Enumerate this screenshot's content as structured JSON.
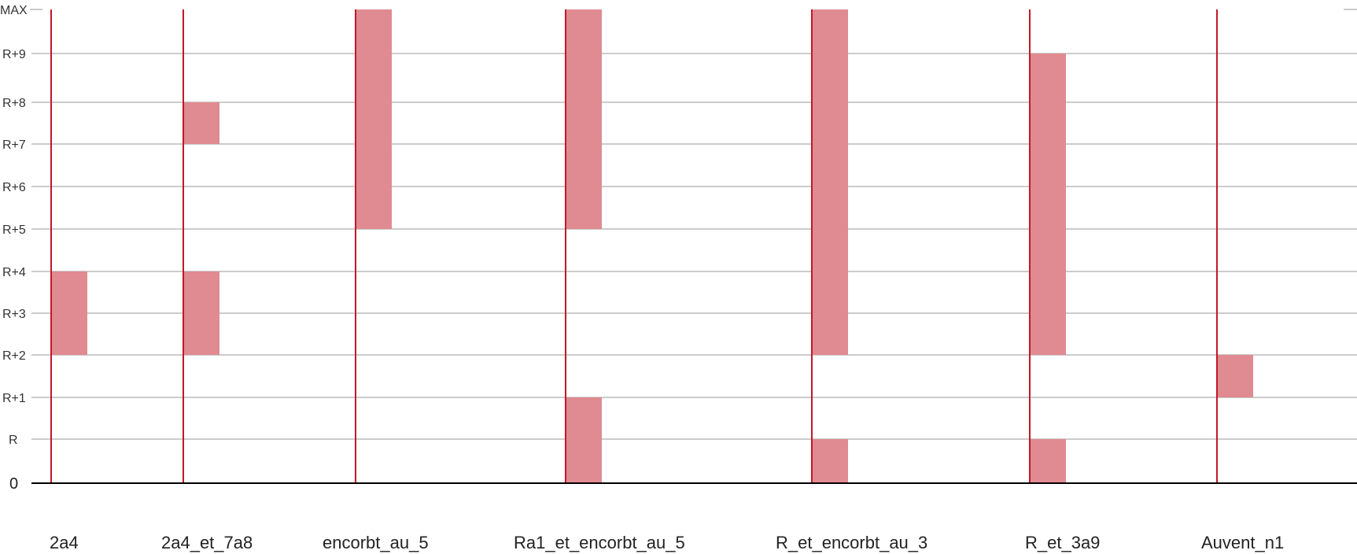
{
  "chart_data": {
    "type": "bar",
    "subtype": "floating-range",
    "title": "",
    "xlabel": "",
    "ylabel": "",
    "y_levels": [
      "0",
      "R",
      "R+1",
      "R+2",
      "R+3",
      "R+4",
      "R+5",
      "R+6",
      "R+7",
      "R+8",
      "R+9",
      "MAX"
    ],
    "grid": true,
    "legend": "none",
    "colors": {
      "bar": "#e08a91",
      "marker": "#c0182a",
      "grid": "#999999",
      "baseline": "#000000"
    },
    "categories": [
      "2a4",
      "2a4_et_7a8",
      "encorbt_au_5",
      "Ra1_et_encorbt_au_5",
      "R_et_encorbt_au_3",
      "R_et_3a9",
      "Auvent_n1"
    ],
    "ranges": [
      [
        [
          "R+2",
          "R+4"
        ]
      ],
      [
        [
          "R+2",
          "R+4"
        ],
        [
          "R+7",
          "R+8"
        ]
      ],
      [
        [
          "R+5",
          "MAX"
        ]
      ],
      [
        [
          "0",
          "R+1"
        ],
        [
          "R+5",
          "MAX"
        ]
      ],
      [
        [
          "0",
          "R"
        ],
        [
          "R+2",
          "MAX"
        ]
      ],
      [
        [
          "0",
          "R"
        ],
        [
          "R+2",
          "R+9"
        ]
      ],
      [
        [
          "R+1",
          "R+2"
        ]
      ]
    ]
  }
}
